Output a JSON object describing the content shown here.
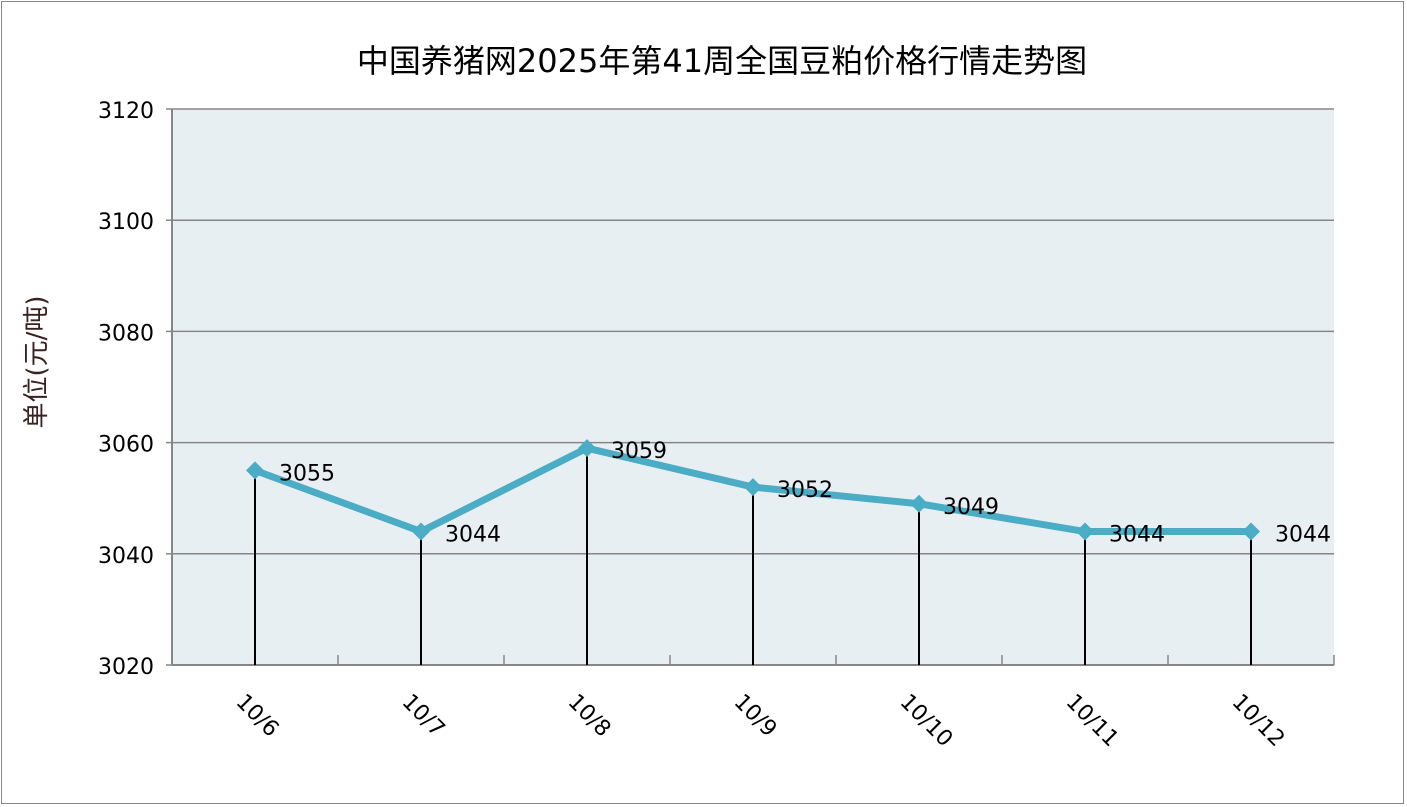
{
  "chart_data": {
    "type": "line",
    "title": "中国养猪网2025年第41周全国豆粕价格行情走势图",
    "xlabel": "",
    "ylabel": "单位(元/吨)",
    "categories": [
      "10/6",
      "10/7",
      "10/8",
      "10/9",
      "10/10",
      "10/11",
      "10/12"
    ],
    "series": [
      {
        "name": "豆粕价格",
        "values": [
          3055,
          3044,
          3059,
          3052,
          3049,
          3044,
          3044
        ]
      }
    ],
    "data_labels": [
      "3055",
      "3044",
      "3059",
      "3052",
      "3049",
      "3044",
      "3044"
    ],
    "ylim": [
      3020,
      3120
    ],
    "yticks": [
      "3020",
      "3040",
      "3060",
      "3080",
      "3100",
      "3120"
    ],
    "grid": true,
    "drop_lines": true,
    "colors": {
      "line": "#4BACC6",
      "plot_bg": "#E8EFF3",
      "grid": "#868686"
    }
  }
}
